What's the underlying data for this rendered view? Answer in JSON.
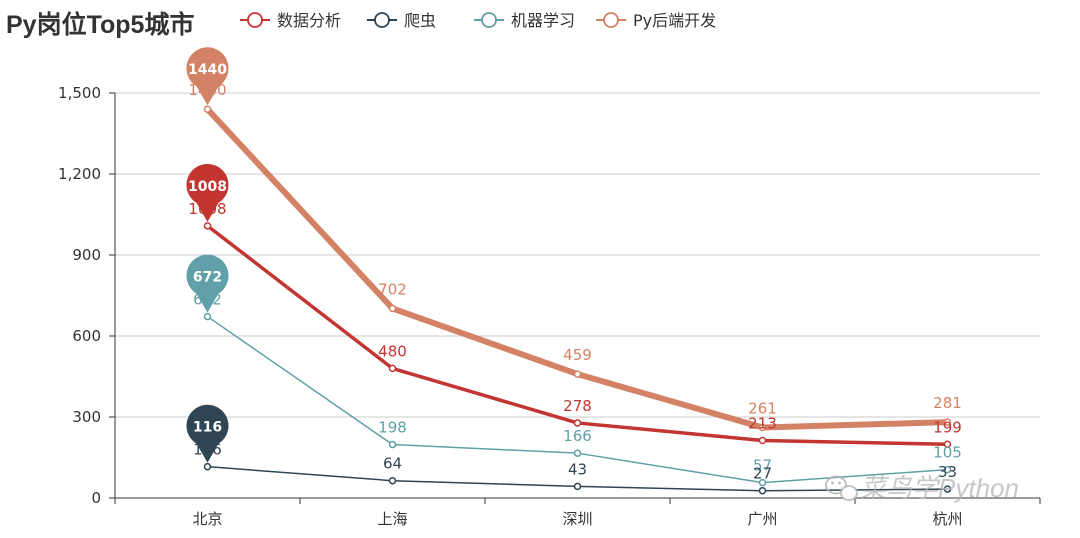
{
  "chart_data": {
    "type": "line",
    "title": "Py岗位Top5城市",
    "categories": [
      "北京",
      "上海",
      "深圳",
      "广州",
      "杭州"
    ],
    "ylim": [
      0,
      1500
    ],
    "yticks": [
      0,
      300,
      600,
      900,
      1200,
      1500
    ],
    "ytick_labels": [
      "0",
      "300",
      "600",
      "900",
      "1,200",
      "1,500"
    ],
    "xlabel": "",
    "ylabel": "",
    "grid": true,
    "legend_position": "top",
    "series": [
      {
        "name": "数据分析",
        "values": [
          1008,
          480,
          278,
          213,
          199
        ],
        "color": "#c23531",
        "line": "thick",
        "max_marker": "1008"
      },
      {
        "name": "爬虫",
        "values": [
          116,
          64,
          43,
          27,
          33
        ],
        "color": "#2f4554",
        "line": "thin",
        "max_marker": "116"
      },
      {
        "name": "机器学习",
        "values": [
          672,
          198,
          166,
          57,
          105
        ],
        "color": "#61a0a8",
        "line": "thin",
        "max_marker": "672"
      },
      {
        "name": "Py后端开发",
        "values": [
          1440,
          702,
          459,
          261,
          281
        ],
        "color": "#d48265",
        "line": "extra-thick",
        "max_marker": "1440"
      }
    ]
  },
  "watermark": {
    "text": "菜鸟学Python",
    "icon": "wechat-icon"
  }
}
